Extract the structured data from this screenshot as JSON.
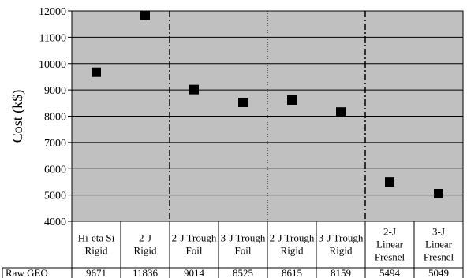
{
  "chart_data": {
    "type": "scatter",
    "ylabel": "Cost (k$)",
    "ylim": [
      4000,
      12000
    ],
    "ytick_step": 1000,
    "grid": true,
    "marker": "square",
    "plot_background": "#c0c0c0",
    "marker_color": "#000000",
    "categories": [
      [
        "Hi-eta Si",
        "Rigid"
      ],
      [
        "2-J",
        "Rigid"
      ],
      [
        "2-J Trough",
        "Foil"
      ],
      [
        "3-J Trough",
        "Foil"
      ],
      [
        "2-J Trough",
        "Rigid"
      ],
      [
        "3-J Trough",
        "Rigid"
      ],
      [
        "2-J",
        "Linear",
        "Fresnel"
      ],
      [
        "3-J",
        "Linear",
        "Fresnel"
      ]
    ],
    "series": [
      {
        "name": "Raw GEO",
        "values": [
          9671,
          11836,
          9014,
          8525,
          8615,
          8159,
          5494,
          5049
        ]
      }
    ],
    "separators": [
      {
        "after_index": 1,
        "style": "dash-dot"
      },
      {
        "after_index": 3,
        "style": "dotted"
      },
      {
        "after_index": 5,
        "style": "dash-dot"
      }
    ]
  }
}
